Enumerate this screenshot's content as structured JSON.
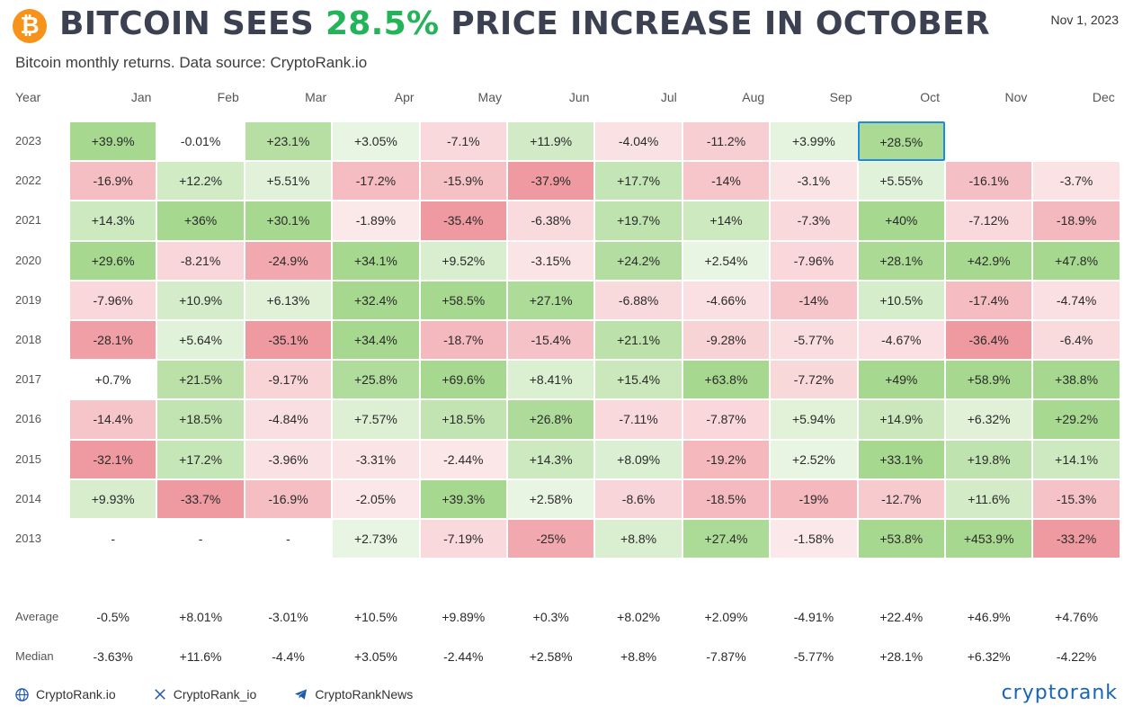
{
  "header": {
    "logo_symbol": "₿",
    "title_prefix": "BITCOIN SEES ",
    "title_highlight": "28.5%",
    "title_suffix": " PRICE INCREASE IN OCTOBER",
    "date": "Nov 1, 2023",
    "subtitle": "Bitcoin monthly returns. Data source: CryptoRank.io",
    "highlight_color": "#23b45a",
    "title_color": "#3c4152"
  },
  "watermark": "CRYPTORANK.IO",
  "chart_data": {
    "type": "heatmap",
    "year_label": "Year",
    "columns": [
      "Jan",
      "Feb",
      "Mar",
      "Apr",
      "May",
      "Jun",
      "Jul",
      "Aug",
      "Sep",
      "Oct",
      "Nov",
      "Dec"
    ],
    "rows": [
      {
        "year": "2023",
        "values": [
          "+39.9%",
          "-0.01%",
          "+23.1%",
          "+3.05%",
          "-7.1%",
          "+11.9%",
          "-4.04%",
          "-11.2%",
          "+3.99%",
          "+28.5%",
          "",
          ""
        ]
      },
      {
        "year": "2022",
        "values": [
          "-16.9%",
          "+12.2%",
          "+5.51%",
          "-17.2%",
          "-15.9%",
          "-37.9%",
          "+17.7%",
          "-14%",
          "-3.1%",
          "+5.55%",
          "-16.1%",
          "-3.7%"
        ]
      },
      {
        "year": "2021",
        "values": [
          "+14.3%",
          "+36%",
          "+30.1%",
          "-1.89%",
          "-35.4%",
          "-6.38%",
          "+19.7%",
          "+14%",
          "-7.3%",
          "+40%",
          "-7.12%",
          "-18.9%"
        ]
      },
      {
        "year": "2020",
        "values": [
          "+29.6%",
          "-8.21%",
          "-24.9%",
          "+34.1%",
          "+9.52%",
          "-3.15%",
          "+24.2%",
          "+2.54%",
          "-7.96%",
          "+28.1%",
          "+42.9%",
          "+47.8%"
        ]
      },
      {
        "year": "2019",
        "values": [
          "-7.96%",
          "+10.9%",
          "+6.13%",
          "+32.4%",
          "+58.5%",
          "+27.1%",
          "-6.88%",
          "-4.66%",
          "-14%",
          "+10.5%",
          "-17.4%",
          "-4.74%"
        ]
      },
      {
        "year": "2018",
        "values": [
          "-28.1%",
          "+5.64%",
          "-35.1%",
          "+34.4%",
          "-18.7%",
          "-15.4%",
          "+21.1%",
          "-9.28%",
          "-5.77%",
          "-4.67%",
          "-36.4%",
          "-6.4%"
        ]
      },
      {
        "year": "2017",
        "values": [
          "+0.7%",
          "+21.5%",
          "-9.17%",
          "+25.8%",
          "+69.6%",
          "+8.41%",
          "+15.4%",
          "+63.8%",
          "-7.72%",
          "+49%",
          "+58.9%",
          "+38.8%"
        ]
      },
      {
        "year": "2016",
        "values": [
          "-14.4%",
          "+18.5%",
          "-4.84%",
          "+7.57%",
          "+18.5%",
          "+26.8%",
          "-7.11%",
          "-7.87%",
          "+5.94%",
          "+14.9%",
          "+6.32%",
          "+29.2%"
        ]
      },
      {
        "year": "2015",
        "values": [
          "-32.1%",
          "+17.2%",
          "-3.96%",
          "-3.31%",
          "-2.44%",
          "+14.3%",
          "+8.09%",
          "-19.2%",
          "+2.52%",
          "+33.1%",
          "+19.8%",
          "+14.1%"
        ]
      },
      {
        "year": "2014",
        "values": [
          "+9.93%",
          "-33.7%",
          "-16.9%",
          "-2.05%",
          "+39.3%",
          "+2.58%",
          "-8.6%",
          "-18.5%",
          "-19%",
          "-12.7%",
          "+11.6%",
          "-15.3%"
        ]
      },
      {
        "year": "2013",
        "values": [
          "-",
          "-",
          "-",
          "+2.73%",
          "-7.19%",
          "-25%",
          "+8.8%",
          "+27.4%",
          "-1.58%",
          "+53.8%",
          "+453.9%",
          "-33.2%"
        ]
      }
    ],
    "selected": {
      "year": "2023",
      "month": "Oct"
    },
    "summary": [
      {
        "label": "Average",
        "values": [
          "-0.5%",
          "+8.01%",
          "-3.01%",
          "+10.5%",
          "+9.89%",
          "+0.3%",
          "+8.02%",
          "+2.09%",
          "-4.91%",
          "+22.4%",
          "+46.9%",
          "+4.76%"
        ]
      },
      {
        "label": "Median",
        "values": [
          "-3.63%",
          "+11.6%",
          "-4.4%",
          "+3.05%",
          "-2.44%",
          "+2.58%",
          "+8.8%",
          "-7.87%",
          "-5.77%",
          "+28.1%",
          "+6.32%",
          "-4.22%"
        ]
      }
    ],
    "colors": {
      "positive": "#a6d88f",
      "negative": "#ef9aa1",
      "selected_border": "#1a8ce6"
    }
  },
  "footer": {
    "links": [
      {
        "icon": "globe-icon",
        "label": "CryptoRank.io"
      },
      {
        "icon": "x-icon",
        "label": "CryptoRank_io"
      },
      {
        "icon": "telegram-icon",
        "label": "CryptoRankNews"
      }
    ],
    "brand": "cryptorank"
  }
}
